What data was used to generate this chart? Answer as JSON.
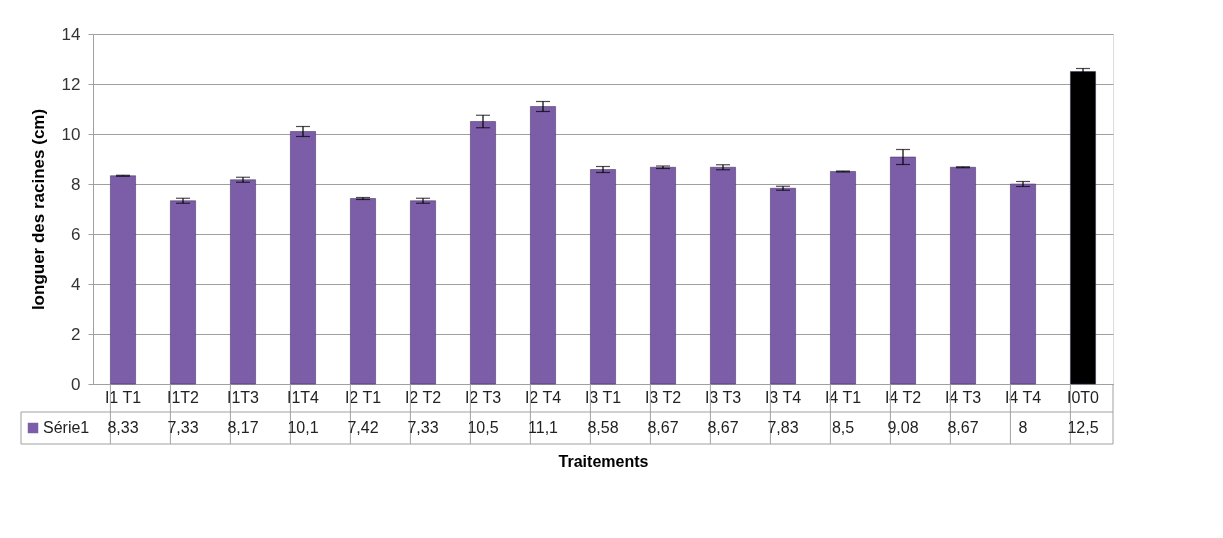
{
  "chart_data": {
    "type": "bar",
    "xlabel": "Traitements",
    "ylabel": "longuer des racines (cm)",
    "categories": [
      "I1 T1",
      "I1T2",
      "I1T3",
      "I1T4",
      "I2 T1",
      "I2 T2",
      "I2 T3",
      "I2 T4",
      "I3 T1",
      "I3 T2",
      "I3 T3",
      "I3 T4",
      "I4 T1",
      "I4 T2",
      "I4 T3",
      "I4 T4",
      "I0T0"
    ],
    "series": [
      {
        "name": "Série1",
        "color": "#7b5ea7",
        "colors": [
          "#7b5ea7",
          "#7b5ea7",
          "#7b5ea7",
          "#7b5ea7",
          "#7b5ea7",
          "#7b5ea7",
          "#7b5ea7",
          "#7b5ea7",
          "#7b5ea7",
          "#7b5ea7",
          "#7b5ea7",
          "#7b5ea7",
          "#7b5ea7",
          "#7b5ea7",
          "#7b5ea7",
          "#7b5ea7",
          "#000000"
        ],
        "values": [
          8.33,
          7.33,
          8.17,
          10.1,
          7.42,
          7.33,
          10.5,
          11.1,
          8.58,
          8.67,
          8.67,
          7.83,
          8.5,
          9.08,
          8.67,
          8,
          12.5
        ],
        "errors": [
          0.02,
          0.1,
          0.1,
          0.2,
          0.04,
          0.1,
          0.25,
          0.2,
          0.12,
          0.05,
          0.1,
          0.08,
          0.02,
          0.3,
          0.02,
          0.1,
          0.12
        ],
        "value_labels": [
          "8,33",
          "7,33",
          "8,17",
          "10,1",
          "7,42",
          "7,33",
          "10,5",
          "11,1",
          "8,58",
          "8,67",
          "8,67",
          "7,83",
          "8,5",
          "9,08",
          "8,67",
          "8",
          "12,5"
        ]
      }
    ],
    "ylim": [
      0,
      14
    ],
    "yticks": [
      0,
      2,
      4,
      6,
      8,
      10,
      12,
      14
    ],
    "grid": "y",
    "legend": "bottom"
  }
}
